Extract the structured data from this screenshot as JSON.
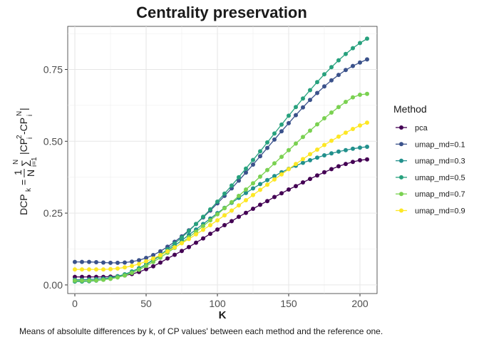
{
  "chart_data": {
    "type": "line",
    "title": "Centrality preservation",
    "xlabel": "K",
    "ylabel": {
      "lhs": "DCP",
      "lhs_sub": "k",
      "eq": "=",
      "frac_num": "1",
      "frac_den": "N",
      "sum": "∑",
      "sum_top": "N",
      "sum_bottom": "i=1",
      "body": "|CP",
      "sup1": "2",
      "sub1": "i",
      "minus": "-CP",
      "sup2": "N",
      "sub2": "i",
      "close": "|"
    },
    "caption": "Means of absolulte differences by k, of CP values' between each method and the reference one.",
    "xlim": [
      -5,
      212
    ],
    "ylim": [
      -0.03,
      0.9
    ],
    "xticks": [
      0,
      50,
      100,
      150,
      200
    ],
    "yticks": [
      0.0,
      0.25,
      0.5,
      0.75
    ],
    "ytick_labels": [
      "0.00",
      "0.25",
      "0.50",
      "0.75"
    ],
    "grid": true,
    "legend_position": "right",
    "legend_title": "Method",
    "x": [
      0,
      5,
      10,
      15,
      20,
      25,
      30,
      35,
      40,
      45,
      50,
      55,
      60,
      65,
      70,
      75,
      80,
      85,
      90,
      95,
      100,
      105,
      110,
      115,
      120,
      125,
      130,
      135,
      140,
      145,
      150,
      155,
      160,
      165,
      170,
      175,
      180,
      185,
      190,
      195,
      200,
      205
    ],
    "series": [
      {
        "name": "pca",
        "color": "#440154",
        "values": [
          0.028,
          0.028,
          0.028,
          0.028,
          0.028,
          0.029,
          0.03,
          0.033,
          0.038,
          0.045,
          0.055,
          0.065,
          0.078,
          0.092,
          0.105,
          0.118,
          0.132,
          0.147,
          0.162,
          0.178,
          0.193,
          0.208,
          0.222,
          0.237,
          0.251,
          0.265,
          0.279,
          0.292,
          0.306,
          0.319,
          0.332,
          0.344,
          0.357,
          0.369,
          0.381,
          0.392,
          0.403,
          0.413,
          0.421,
          0.428,
          0.434,
          0.437
        ]
      },
      {
        "name": "umap_md=0.1",
        "color": "#3b528b",
        "values": [
          0.08,
          0.08,
          0.08,
          0.079,
          0.078,
          0.077,
          0.077,
          0.078,
          0.081,
          0.086,
          0.094,
          0.104,
          0.117,
          0.133,
          0.15,
          0.169,
          0.19,
          0.212,
          0.235,
          0.259,
          0.284,
          0.31,
          0.336,
          0.363,
          0.391,
          0.419,
          0.448,
          0.477,
          0.506,
          0.535,
          0.563,
          0.591,
          0.618,
          0.644,
          0.668,
          0.691,
          0.712,
          0.731,
          0.748,
          0.762,
          0.774,
          0.785
        ]
      },
      {
        "name": "umap_md=0.3",
        "color": "#21908c",
        "values": [
          0.018,
          0.018,
          0.019,
          0.02,
          0.022,
          0.025,
          0.03,
          0.037,
          0.047,
          0.058,
          0.071,
          0.086,
          0.102,
          0.119,
          0.137,
          0.155,
          0.174,
          0.193,
          0.212,
          0.231,
          0.25,
          0.268,
          0.286,
          0.303,
          0.32,
          0.336,
          0.351,
          0.365,
          0.379,
          0.392,
          0.404,
          0.415,
          0.425,
          0.434,
          0.443,
          0.451,
          0.458,
          0.464,
          0.469,
          0.474,
          0.478,
          0.481
        ]
      },
      {
        "name": "umap_md=0.5",
        "color": "#27a17d",
        "values": [
          0.012,
          0.012,
          0.013,
          0.015,
          0.018,
          0.022,
          0.028,
          0.036,
          0.046,
          0.058,
          0.072,
          0.088,
          0.105,
          0.124,
          0.144,
          0.165,
          0.188,
          0.212,
          0.237,
          0.263,
          0.29,
          0.318,
          0.346,
          0.375,
          0.405,
          0.435,
          0.465,
          0.496,
          0.527,
          0.558,
          0.589,
          0.619,
          0.649,
          0.678,
          0.706,
          0.733,
          0.758,
          0.782,
          0.804,
          0.824,
          0.842,
          0.857
        ]
      },
      {
        "name": "umap_md=0.7",
        "color": "#7ad151",
        "values": [
          0.015,
          0.015,
          0.015,
          0.016,
          0.018,
          0.021,
          0.026,
          0.033,
          0.042,
          0.053,
          0.066,
          0.08,
          0.095,
          0.112,
          0.129,
          0.147,
          0.166,
          0.185,
          0.205,
          0.225,
          0.246,
          0.267,
          0.288,
          0.31,
          0.332,
          0.354,
          0.377,
          0.4,
          0.423,
          0.446,
          0.469,
          0.492,
          0.515,
          0.537,
          0.559,
          0.58,
          0.6,
          0.619,
          0.637,
          0.653,
          0.662,
          0.665
        ]
      },
      {
        "name": "umap_md=0.9",
        "color": "#fde725",
        "values": [
          0.054,
          0.054,
          0.054,
          0.054,
          0.054,
          0.055,
          0.057,
          0.061,
          0.066,
          0.073,
          0.082,
          0.092,
          0.104,
          0.117,
          0.131,
          0.145,
          0.16,
          0.176,
          0.192,
          0.208,
          0.225,
          0.242,
          0.259,
          0.277,
          0.295,
          0.313,
          0.331,
          0.349,
          0.367,
          0.385,
          0.403,
          0.421,
          0.438,
          0.455,
          0.471,
          0.487,
          0.502,
          0.516,
          0.53,
          0.543,
          0.555,
          0.565
        ]
      }
    ]
  }
}
